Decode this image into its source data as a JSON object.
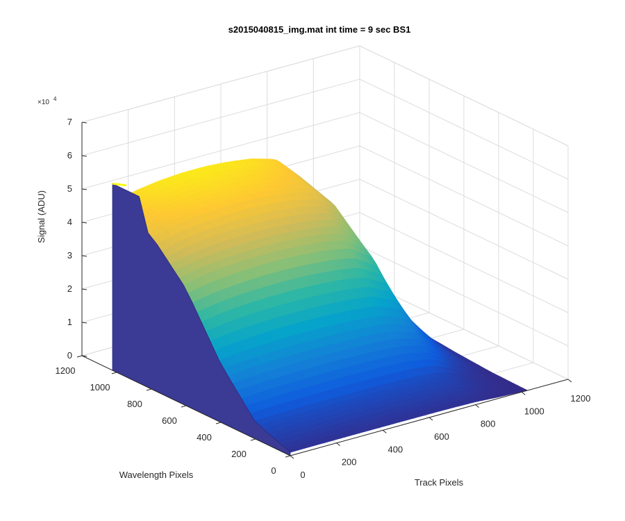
{
  "chart_data": {
    "type": "surface3d",
    "title": "s2015040815_img.mat int time = 9 sec   BS1",
    "xlabel": "Track Pixels",
    "ylabel": "Wavelength Pixels",
    "zlabel": "Signal (ADU)",
    "z_exponent_base": "×10",
    "z_exponent_power": "4",
    "xlim": [
      0,
      1200
    ],
    "ylim": [
      0,
      1200
    ],
    "zlim": [
      0,
      70000
    ],
    "x_ticks": [
      "0",
      "200",
      "400",
      "600",
      "800",
      "1000",
      "1200"
    ],
    "y_ticks": [
      "0",
      "200",
      "400",
      "600",
      "800",
      "1000",
      "1200"
    ],
    "z_ticks": [
      "0",
      "1",
      "2",
      "3",
      "4",
      "5",
      "6",
      "7"
    ],
    "grid": true,
    "colormap": "parula",
    "colors": [
      "#352a87",
      "#0f5cdd",
      "#1481d6",
      "#06a4ca",
      "#2eb7a4",
      "#87bf77",
      "#d1bb59",
      "#fec832",
      "#f9fb0e"
    ],
    "surface_profile": {
      "description_free": true,
      "track_pixels": [
        0,
        100,
        200,
        300,
        400,
        500,
        600,
        700,
        800,
        900,
        1000,
        1024
      ],
      "peak_signal_at_wavelength_1024": [
        50000,
        52000,
        53000,
        53500,
        53500,
        53000,
        52000,
        50000,
        43000,
        20000,
        5000,
        3000
      ],
      "wavelength_pixels": [
        0,
        200,
        400,
        600,
        800,
        1000,
        1024
      ],
      "relative_profile_along_wavelength": [
        0.02,
        0.1,
        0.35,
        0.7,
        0.92,
        1.0,
        1.0
      ],
      "edge_plateau_signal": 56000
    }
  }
}
